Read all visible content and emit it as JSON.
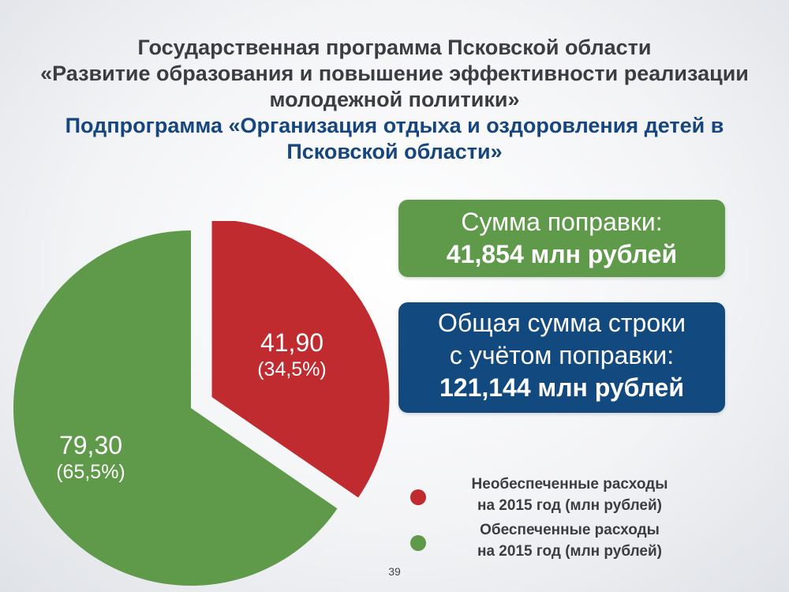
{
  "header": {
    "title_lines": [
      "Государственная программа Псковской области",
      "«Развитие образования и повышение эффективности реализации",
      "молодежной политики»"
    ],
    "subtitle_lines": [
      "Подпрограмма «Организация отдыха и оздоровления детей в",
      "Псковской области»"
    ]
  },
  "boxes": {
    "amendment": {
      "line1": "Сумма поправки:",
      "line2": "41,854 млн рублей",
      "color": "#5e9a49"
    },
    "total": {
      "line1": "Общая сумма строки",
      "line2": "с учётом поправки:",
      "line3": "121,144 млн рублей",
      "color": "#124a80"
    }
  },
  "chart_data": {
    "type": "pie",
    "slices": [
      {
        "name": "Необеспеченные расходы на 2015 год (млн рублей)",
        "value": 41.9,
        "value_label": "41,90",
        "percent_label": "(34,5%)",
        "color": "#bf2b2f",
        "exploded": true
      },
      {
        "name": "Обеспеченные расходы на 2015 год (млн рублей)",
        "value": 79.3,
        "value_label": "79,30",
        "percent_label": "(65,5%)",
        "color": "#5e9a49",
        "exploded": false
      }
    ],
    "legend_placement": "bottom-right"
  },
  "legend": {
    "items": [
      {
        "line1": "Необеспеченные расходы",
        "line2": "на 2015 год  (млн рублей)",
        "color": "#bf2b2f"
      },
      {
        "line1": "Обеспеченные расходы",
        "line2": "на 2015 год (млн рублей)",
        "color": "#5e9a49"
      }
    ]
  },
  "footer": {
    "page_number": "39"
  }
}
